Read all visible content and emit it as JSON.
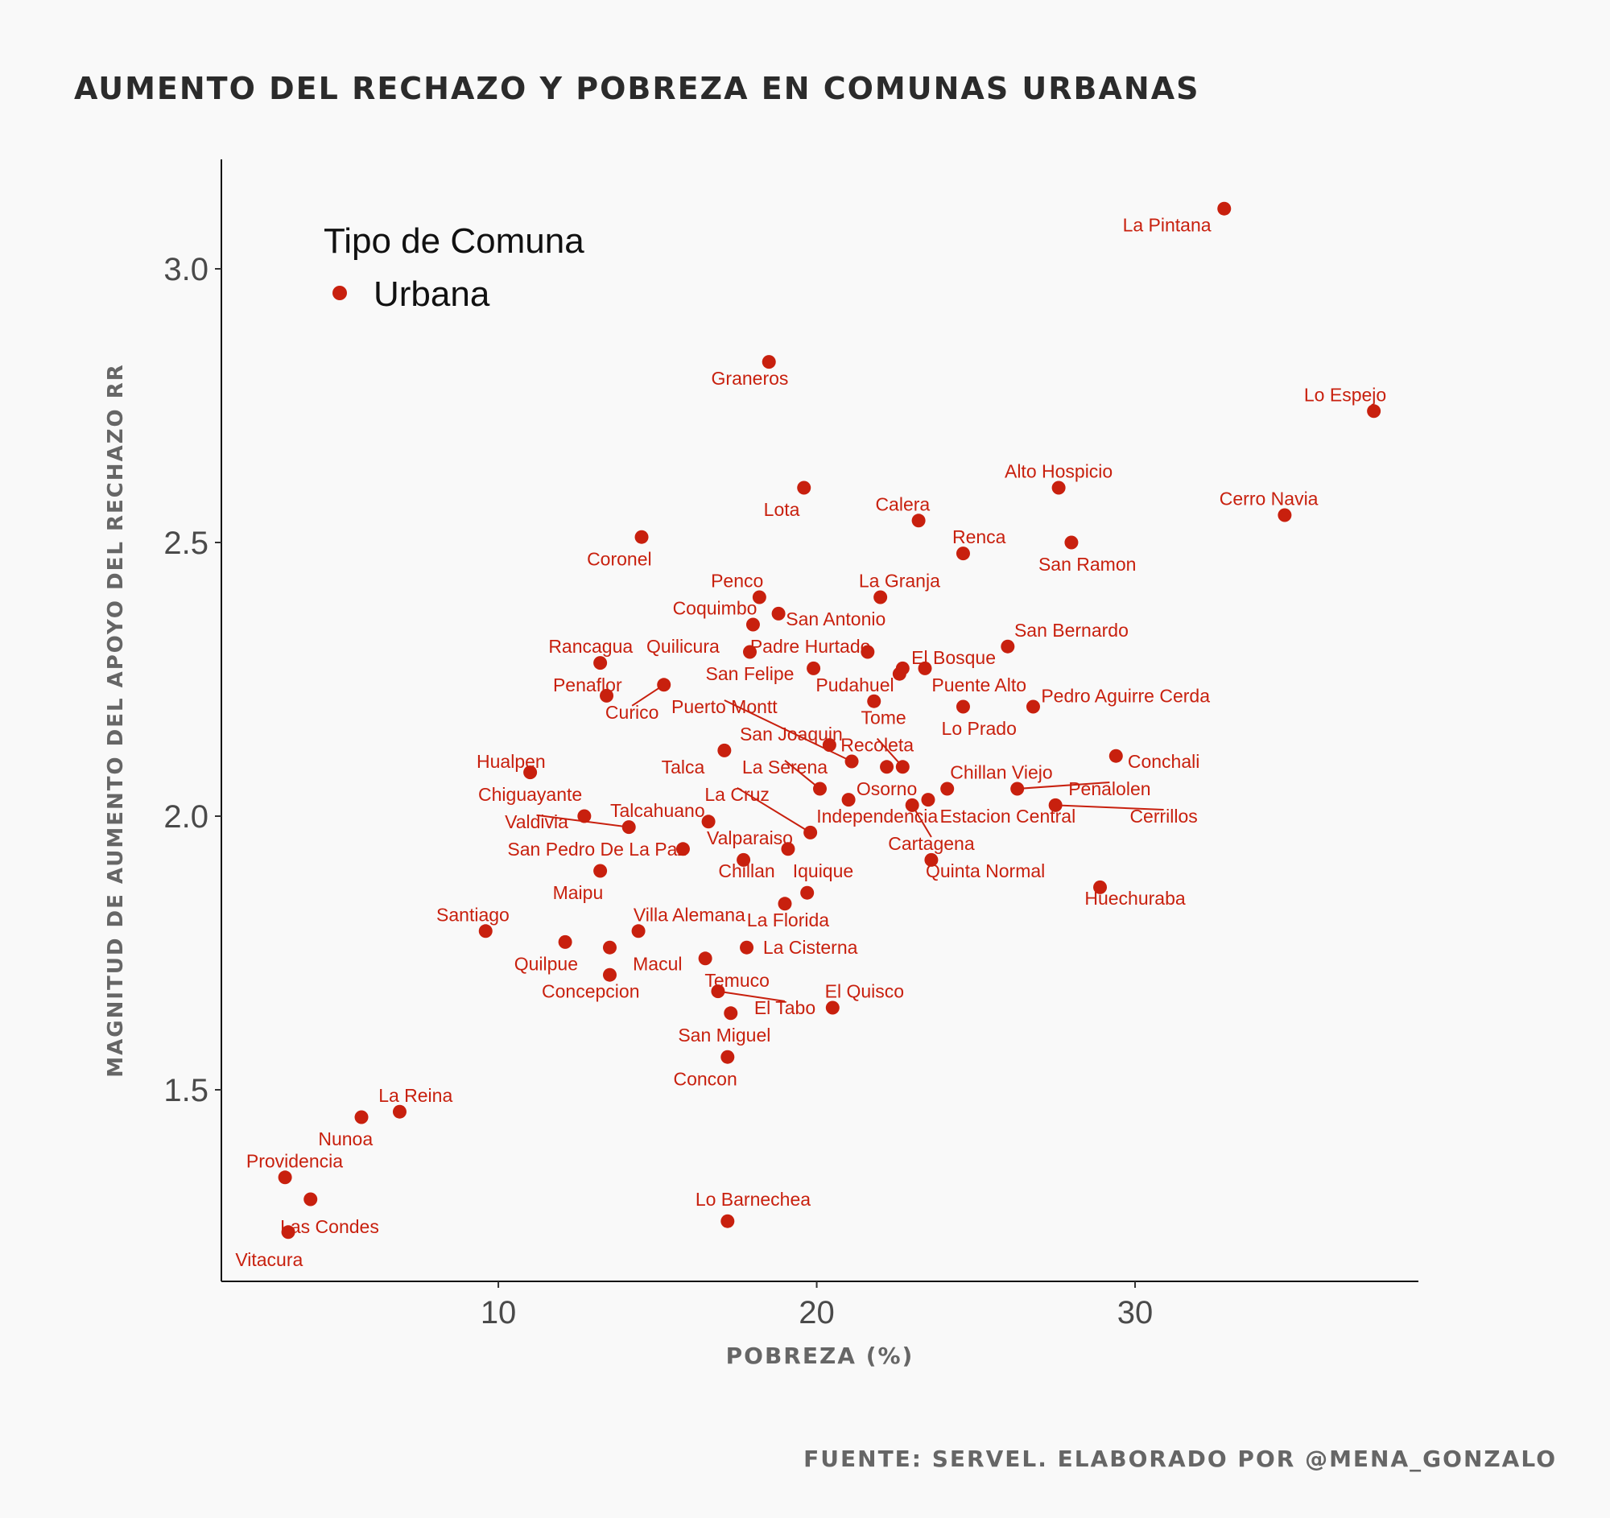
{
  "chart_data": {
    "type": "scatter",
    "title": "AUMENTO DEL RECHAZO Y POBREZA EN COMUNAS URBANAS",
    "xlabel": "POBREZA (%)",
    "ylabel": "MAGNITUD DE AUMENTO DEL APOYO DEL RECHAZO RR",
    "caption": "FUENTE: SERVEL. ELABORADO POR @MENA_GONZALO",
    "xlim": [
      1.3,
      38.9
    ],
    "ylim": [
      1.15,
      3.2
    ],
    "x_ticks": [
      10,
      20,
      30
    ],
    "x_tick_labels": [
      "10",
      "20",
      "30"
    ],
    "y_ticks": [
      1.5,
      2.0,
      2.5,
      3.0
    ],
    "y_tick_labels": [
      "1.5",
      "2.0",
      "2.5",
      "3.0"
    ],
    "grid": false,
    "legend": {
      "title": "Tipo de Comuna",
      "entries": [
        "Urbana"
      ],
      "position": "top-left"
    },
    "point_color": "#c8200e",
    "label_color": "#c8200e",
    "series": [
      {
        "name": "Urbana",
        "points": [
          {
            "label": "La Pintana",
            "x": 32.8,
            "y": 3.11,
            "lx": 31.0,
            "ly": 3.08
          },
          {
            "label": "Lo Espejo",
            "x": 37.5,
            "y": 2.74,
            "lx": 36.6,
            "ly": 2.77
          },
          {
            "label": "Graneros",
            "x": 18.5,
            "y": 2.83,
            "lx": 17.9,
            "ly": 2.8
          },
          {
            "label": "Cerro Navia",
            "x": 34.7,
            "y": 2.55,
            "lx": 34.2,
            "ly": 2.58
          },
          {
            "label": "Alto Hospicio",
            "x": 27.6,
            "y": 2.6,
            "lx": 27.6,
            "ly": 2.63
          },
          {
            "label": "San Ramon",
            "x": 28.0,
            "y": 2.5,
            "lx": 28.5,
            "ly": 2.46
          },
          {
            "label": "Lota",
            "x": 19.6,
            "y": 2.6,
            "lx": 18.9,
            "ly": 2.56
          },
          {
            "label": "Calera",
            "x": 23.2,
            "y": 2.54,
            "lx": 22.7,
            "ly": 2.57
          },
          {
            "label": "Coronel",
            "x": 14.5,
            "y": 2.51,
            "lx": 13.8,
            "ly": 2.47
          },
          {
            "label": "Renca",
            "x": 24.6,
            "y": 2.48,
            "lx": 25.1,
            "ly": 2.51
          },
          {
            "label": "Penco",
            "x": 18.2,
            "y": 2.4,
            "lx": 17.5,
            "ly": 2.43
          },
          {
            "label": "La Granja",
            "x": 22.0,
            "y": 2.4,
            "lx": 22.6,
            "ly": 2.43
          },
          {
            "label": "Coquimbo",
            "x": 18.0,
            "y": 2.35,
            "lx": 16.8,
            "ly": 2.38
          },
          {
            "label": "San Antonio",
            "x": 18.8,
            "y": 2.37,
            "lx": 20.6,
            "ly": 2.36
          },
          {
            "label": "San Bernardo",
            "x": 26.0,
            "y": 2.31,
            "lx": 28.0,
            "ly": 2.34
          },
          {
            "label": "Rancagua",
            "x": 13.2,
            "y": 2.28,
            "lx": 12.9,
            "ly": 2.31
          },
          {
            "label": "Quilicura",
            "x": 17.9,
            "y": 2.3,
            "lx": 15.8,
            "ly": 2.31
          },
          {
            "label": "Padre Hurtado",
            "x": 21.6,
            "y": 2.3,
            "lx": 19.8,
            "ly": 2.31
          },
          {
            "label": "El Bosque",
            "x": 22.7,
            "y": 2.27,
            "lx": 24.3,
            "ly": 2.29
          },
          {
            "label": "San Felipe",
            "x": 19.9,
            "y": 2.27,
            "lx": 17.9,
            "ly": 2.26
          },
          {
            "label": "Pudahuel",
            "x": 22.6,
            "y": 2.26,
            "lx": 21.2,
            "ly": 2.24
          },
          {
            "label": "Puente Alto",
            "x": 23.4,
            "y": 2.27,
            "lx": 25.1,
            "ly": 2.24
          },
          {
            "label": "Penaflor",
            "x": 13.4,
            "y": 2.22,
            "lx": 12.8,
            "ly": 2.24
          },
          {
            "label": "Curico",
            "x": 15.2,
            "y": 2.24,
            "lx": 14.2,
            "ly": 2.19,
            "line": true
          },
          {
            "label": "Pedro Aguirre Cerda",
            "x": 26.8,
            "y": 2.2,
            "lx": 29.7,
            "ly": 2.22
          },
          {
            "label": "Tome",
            "x": 21.8,
            "y": 2.21,
            "lx": 22.1,
            "ly": 2.18
          },
          {
            "label": "Lo Prado",
            "x": 24.6,
            "y": 2.2,
            "lx": 25.1,
            "ly": 2.16
          },
          {
            "label": "Puerto Montt",
            "x": 21.1,
            "y": 2.1,
            "lx": 17.1,
            "ly": 2.2,
            "line": true
          },
          {
            "label": "San Joaquin",
            "x": 20.4,
            "y": 2.13,
            "lx": 19.2,
            "ly": 2.15
          },
          {
            "label": "Recoleta",
            "x": 22.7,
            "y": 2.09,
            "lx": 21.9,
            "ly": 2.13,
            "line": true
          },
          {
            "label": "Hualpen",
            "x": 11.0,
            "y": 2.08,
            "lx": 10.4,
            "ly": 2.1
          },
          {
            "label": "Talca",
            "x": 17.1,
            "y": 2.12,
            "lx": 15.8,
            "ly": 2.09
          },
          {
            "label": "Conchali",
            "x": 29.4,
            "y": 2.11,
            "lx": 30.9,
            "ly": 2.1
          },
          {
            "label": "La Serena",
            "x": 20.1,
            "y": 2.05,
            "lx": 19.0,
            "ly": 2.09,
            "line": true
          },
          {
            "label": "Chillan Viejo",
            "x": 24.1,
            "y": 2.05,
            "lx": 25.8,
            "ly": 2.08
          },
          {
            "label": "Osorno",
            "x": 22.2,
            "y": 2.09,
            "lx": 22.2,
            "ly": 2.05
          },
          {
            "label": "Penalolen",
            "x": 26.3,
            "y": 2.05,
            "lx": 29.2,
            "ly": 2.05,
            "line": true
          },
          {
            "label": "Chiguayante",
            "x": 12.7,
            "y": 2.0,
            "lx": 11.0,
            "ly": 2.04
          },
          {
            "label": "La Cruz",
            "x": 19.8,
            "y": 1.97,
            "lx": 17.5,
            "ly": 2.04,
            "line": true
          },
          {
            "label": "Talcahuano",
            "x": 16.6,
            "y": 1.99,
            "lx": 15.0,
            "ly": 2.01
          },
          {
            "label": "Valdivia",
            "x": 14.1,
            "y": 1.98,
            "lx": 11.2,
            "ly": 1.99,
            "line": true
          },
          {
            "label": "Independencia",
            "x": 21.0,
            "y": 2.03,
            "lx": 21.9,
            "ly": 2.0
          },
          {
            "label": "Estacion Central",
            "x": 23.5,
            "y": 2.03,
            "lx": 26.0,
            "ly": 2.0
          },
          {
            "label": "Cerrillos",
            "x": 27.5,
            "y": 2.02,
            "lx": 30.9,
            "ly": 2.0,
            "line": true
          },
          {
            "label": "Cartagena",
            "x": 23.0,
            "y": 2.02,
            "lx": 23.6,
            "ly": 1.95,
            "line": true
          },
          {
            "label": "San Pedro De La Paz",
            "x": 15.8,
            "y": 1.94,
            "lx": 13.1,
            "ly": 1.94
          },
          {
            "label": "Valparaiso",
            "x": 19.1,
            "y": 1.94,
            "lx": 17.9,
            "ly": 1.96
          },
          {
            "label": "Quinta Normal",
            "x": 23.6,
            "y": 1.92,
            "lx": 25.3,
            "ly": 1.9
          },
          {
            "label": "Chillan",
            "x": 17.7,
            "y": 1.92,
            "lx": 17.8,
            "ly": 1.9
          },
          {
            "label": "Iquique",
            "x": 19.7,
            "y": 1.86,
            "lx": 20.2,
            "ly": 1.9
          },
          {
            "label": "Maipu",
            "x": 13.2,
            "y": 1.9,
            "lx": 12.5,
            "ly": 1.86
          },
          {
            "label": "Huechuraba",
            "x": 28.9,
            "y": 1.87,
            "lx": 30.0,
            "ly": 1.85
          },
          {
            "label": "Santiago",
            "x": 9.6,
            "y": 1.79,
            "lx": 9.2,
            "ly": 1.82
          },
          {
            "label": "Villa Alemana",
            "x": 14.4,
            "y": 1.79,
            "lx": 16.0,
            "ly": 1.82
          },
          {
            "label": "La Florida",
            "x": 19.0,
            "y": 1.84,
            "lx": 19.1,
            "ly": 1.81
          },
          {
            "label": "Quilpue",
            "x": 12.1,
            "y": 1.77,
            "lx": 11.5,
            "ly": 1.73
          },
          {
            "label": "Macul",
            "x": 13.5,
            "y": 1.76,
            "lx": 15.0,
            "ly": 1.73
          },
          {
            "label": "La Cisterna",
            "x": 17.8,
            "y": 1.76,
            "lx": 19.8,
            "ly": 1.76
          },
          {
            "label": "Temuco",
            "x": 16.5,
            "y": 1.74,
            "lx": 17.5,
            "ly": 1.7
          },
          {
            "label": "Concepcion",
            "x": 13.5,
            "y": 1.71,
            "lx": 12.9,
            "ly": 1.68
          },
          {
            "label": "El Tabo",
            "x": 16.9,
            "y": 1.68,
            "lx": 19.0,
            "ly": 1.65,
            "line": true
          },
          {
            "label": "El Quisco",
            "x": 20.5,
            "y": 1.65,
            "lx": 21.5,
            "ly": 1.68
          },
          {
            "label": "San Miguel",
            "x": 17.3,
            "y": 1.64,
            "lx": 17.1,
            "ly": 1.6
          },
          {
            "label": "Concon",
            "x": 17.2,
            "y": 1.56,
            "lx": 16.5,
            "ly": 1.52
          },
          {
            "label": "La Reina",
            "x": 6.9,
            "y": 1.46,
            "lx": 7.4,
            "ly": 1.49
          },
          {
            "label": "Nunoa",
            "x": 5.7,
            "y": 1.45,
            "lx": 5.2,
            "ly": 1.41
          },
          {
            "label": "Providencia",
            "x": 3.3,
            "y": 1.34,
            "lx": 3.6,
            "ly": 1.37
          },
          {
            "label": "Lo Barnechea",
            "x": 17.2,
            "y": 1.26,
            "lx": 18.0,
            "ly": 1.3
          },
          {
            "label": "Las Condes",
            "x": 4.1,
            "y": 1.3,
            "lx": 4.7,
            "ly": 1.25
          },
          {
            "label": "Vitacura",
            "x": 3.4,
            "y": 1.24,
            "lx": 2.8,
            "ly": 1.19
          }
        ]
      }
    ]
  }
}
